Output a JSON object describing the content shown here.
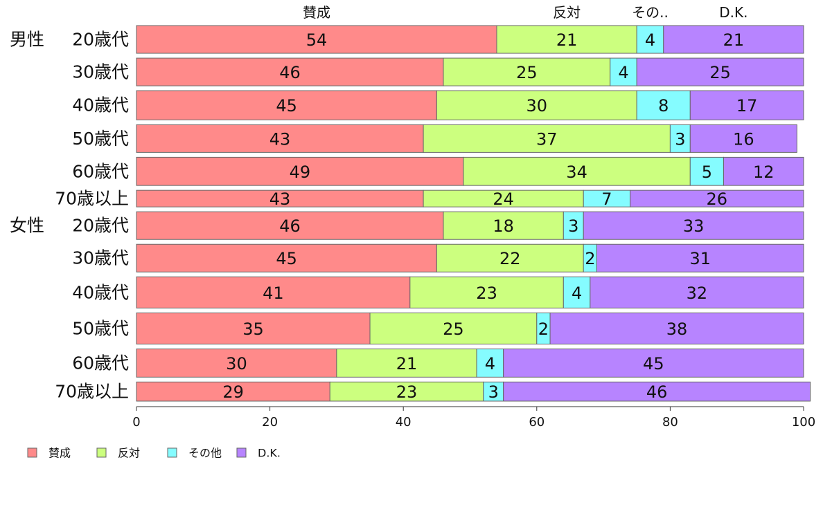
{
  "chart_data": {
    "type": "bar",
    "orientation": "horizontal",
    "stacked": true,
    "groups": [
      {
        "label": "男性",
        "rows": [
          0,
          1,
          2,
          3,
          4,
          5
        ]
      },
      {
        "label": "女性",
        "rows": [
          6,
          7,
          8,
          9,
          10,
          11
        ]
      }
    ],
    "categories": [
      "20歳代",
      "30歳代",
      "40歳代",
      "50歳代",
      "60歳代",
      "70歳以上",
      "20歳代",
      "30歳代",
      "40歳代",
      "50歳代",
      "60歳代",
      "70歳以上"
    ],
    "row_weights": [
      55,
      55,
      58,
      55,
      56,
      33,
      55,
      55,
      62,
      62,
      56,
      38
    ],
    "series": [
      {
        "name": "賛成",
        "color": "#ff8a8a",
        "values": [
          54,
          46,
          45,
          43,
          49,
          43,
          46,
          45,
          41,
          35,
          30,
          29
        ]
      },
      {
        "name": "反対",
        "color": "#ccff7f",
        "values": [
          21,
          25,
          30,
          37,
          34,
          24,
          18,
          22,
          23,
          25,
          21,
          23
        ]
      },
      {
        "name": "その他",
        "color": "#85fcff",
        "values": [
          4,
          4,
          8,
          3,
          5,
          7,
          3,
          2,
          4,
          2,
          4,
          3
        ]
      },
      {
        "name": "D.K.",
        "color": "#b784ff",
        "values": [
          21,
          25,
          17,
          16,
          12,
          26,
          33,
          31,
          32,
          38,
          45,
          46
        ]
      }
    ],
    "column_headers": [
      "賛成",
      "反対",
      "その..",
      "D.K."
    ],
    "xlim": [
      0,
      100
    ],
    "xticks": [
      0,
      20,
      40,
      60,
      80,
      100
    ],
    "grid": false,
    "legend_position": "bottom-left"
  }
}
